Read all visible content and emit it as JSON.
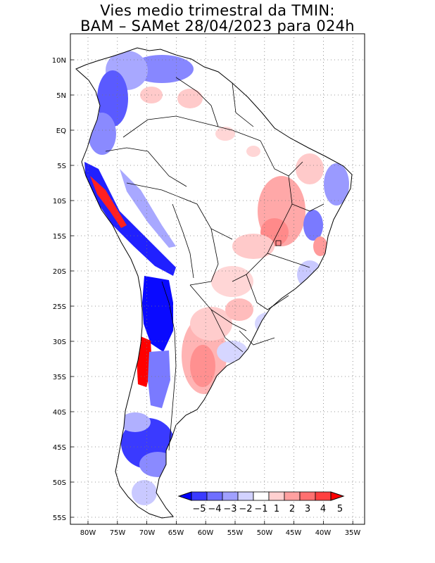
{
  "title": {
    "line1": "Vies medio trimestral da TMIN:",
    "line2": "BAM – SAMet 28/04/2023  para 024h"
  },
  "axes": {
    "lat_labels": [
      "10N",
      "5N",
      "EQ",
      "5S",
      "10S",
      "15S",
      "20S",
      "25S",
      "30S",
      "35S",
      "40S",
      "45S",
      "50S",
      "55S"
    ],
    "lon_labels": [
      "80W",
      "75W",
      "70W",
      "65W",
      "60W",
      "55W",
      "50W",
      "45W",
      "40W",
      "35W"
    ],
    "grid": "dotted"
  },
  "colorbar": {
    "labels": [
      "−5",
      "−4",
      "−3",
      "−2",
      "−1",
      "1",
      "2",
      "3",
      "4",
      "5"
    ],
    "colors": [
      "#0000ff",
      "#3a3aff",
      "#6f6fff",
      "#a0a0ff",
      "#d2d2ff",
      "#ffffff",
      "#ffd0d0",
      "#ffa0a0",
      "#ff7070",
      "#ff4040",
      "#ff0000"
    ],
    "orientation": "horizontal",
    "placement": "bottom-right"
  },
  "colors": {
    "strong_negative": "#1e1eff",
    "moderate_negative": "#7a7aff",
    "weak_negative": "#c9c9ff",
    "weak_positive": "#ffd0d0",
    "moderate_positive": "#ff9a9a",
    "strong_positive": "#ff1a1a"
  }
}
